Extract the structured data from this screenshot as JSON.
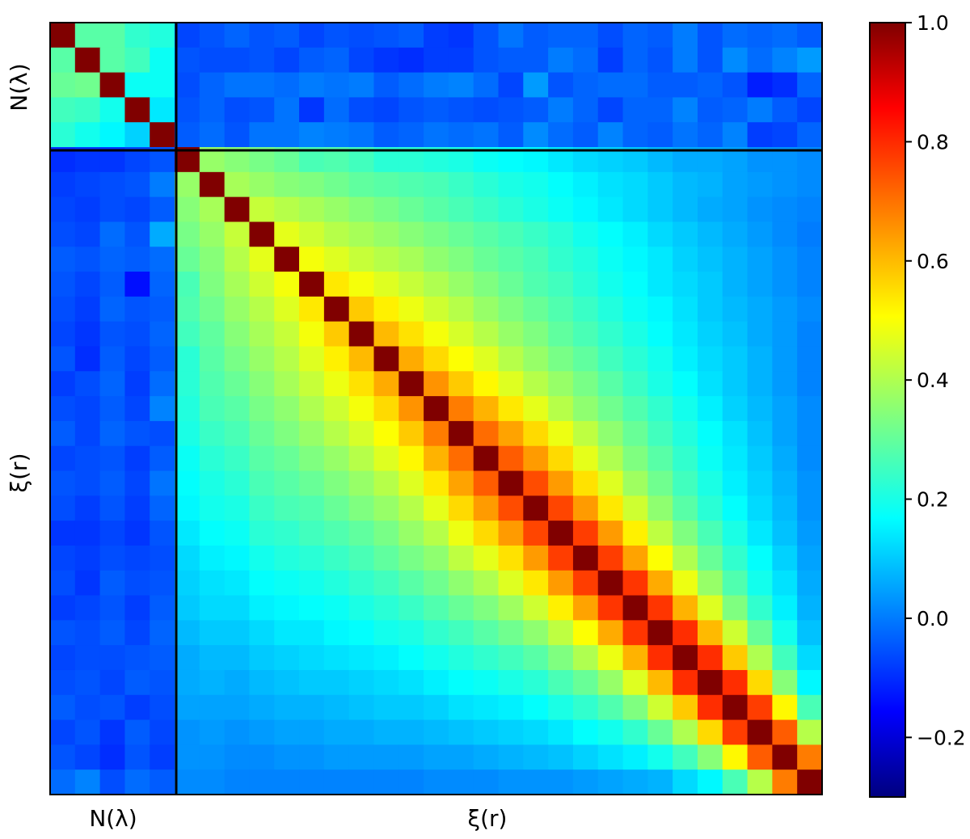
{
  "chart_data": {
    "type": "heatmap",
    "title": "",
    "xlabel_groups": [
      "N(λ)",
      "ξ(r)"
    ],
    "ylabel_groups": [
      "N(λ)",
      "ξ(r)"
    ],
    "group_sizes": [
      5,
      26
    ],
    "colormap": "jet",
    "zlim": [
      -0.3,
      1.0
    ],
    "colorbar": {
      "ticks": [
        1.0,
        0.8,
        0.6,
        0.4,
        0.2,
        0.0,
        -0.2
      ],
      "tick_labels": [
        "1.0",
        "0.8",
        "0.6",
        "0.4",
        "0.2",
        "0.0",
        "−0.2"
      ]
    },
    "grid": false,
    "blocks": {
      "n_lambda_internal_offdiag": 0.27,
      "cross_block_range": [
        -0.15,
        0.12
      ],
      "xi_near_diagonal": [
        0.72,
        0.58,
        0.5,
        0.45,
        0.4,
        0.36,
        0.33,
        0.3,
        0.27,
        0.25,
        0.22,
        0.2,
        0.18,
        0.16,
        0.14,
        0.12,
        0.1,
        0.08,
        0.06,
        0.05,
        0.04,
        0.03,
        0.02,
        0.01,
        0.0
      ]
    },
    "values": [
      [
        1.0,
        0.3,
        0.3,
        0.25,
        0.23,
        -0.05,
        -0.03,
        -0.01,
        -0.03,
        -0.02,
        -0.05,
        -0.03,
        -0.04,
        -0.03,
        -0.02,
        -0.06,
        -0.07,
        -0.03,
        0.01,
        -0.02,
        -0.01,
        -0.01,
        -0.04,
        -0.01,
        -0.02,
        0.02,
        -0.03,
        0.0,
        -0.01,
        0.0,
        -0.02
      ],
      [
        0.3,
        1.0,
        0.3,
        0.27,
        0.2,
        -0.03,
        -0.04,
        -0.04,
        -0.03,
        -0.05,
        -0.02,
        -0.01,
        -0.05,
        -0.07,
        -0.08,
        -0.06,
        -0.06,
        -0.03,
        -0.02,
        -0.02,
        0.02,
        0.0,
        -0.06,
        -0.01,
        -0.03,
        0.02,
        -0.03,
        0.04,
        0.0,
        0.03,
        0.06
      ],
      [
        0.32,
        0.33,
        1.0,
        0.2,
        0.2,
        -0.04,
        -0.01,
        0.01,
        0.01,
        0.0,
        0.02,
        0.01,
        0.02,
        -0.02,
        0.0,
        0.02,
        0.03,
        0.0,
        -0.05,
        0.06,
        -0.03,
        -0.01,
        0.0,
        0.0,
        -0.02,
        -0.02,
        -0.01,
        -0.03,
        -0.1,
        -0.08,
        -0.01
      ],
      [
        0.27,
        0.26,
        0.21,
        1.0,
        0.16,
        -0.03,
        -0.01,
        -0.04,
        -0.03,
        0.01,
        -0.07,
        0.0,
        -0.04,
        -0.05,
        -0.03,
        -0.02,
        -0.03,
        -0.04,
        -0.03,
        -0.02,
        0.02,
        -0.01,
        -0.05,
        -0.01,
        -0.01,
        0.03,
        -0.02,
        -0.01,
        0.02,
        -0.02,
        -0.05
      ],
      [
        0.24,
        0.21,
        0.18,
        0.13,
        1.0,
        -0.02,
        0.0,
        -0.03,
        0.01,
        0.01,
        0.03,
        0.02,
        0.01,
        -0.02,
        -0.01,
        0.01,
        0.0,
        0.01,
        -0.02,
        0.04,
        0.0,
        -0.02,
        0.03,
        -0.01,
        -0.02,
        0.01,
        -0.01,
        0.03,
        -0.06,
        -0.05,
        -0.01
      ],
      [
        -0.08,
        -0.07,
        -0.07,
        -0.05,
        -0.03,
        1.0,
        0.38,
        0.36,
        0.34,
        0.32,
        0.28,
        0.29,
        0.27,
        0.24,
        0.24,
        0.23,
        0.22,
        0.2,
        0.19,
        0.18,
        0.16,
        0.14,
        0.13,
        0.12,
        0.1,
        0.08,
        0.08,
        0.07,
        0.05,
        0.05,
        0.04
      ],
      [
        -0.06,
        -0.05,
        -0.04,
        -0.03,
        0.02,
        0.38,
        1.0,
        0.4,
        0.38,
        0.36,
        0.35,
        0.33,
        0.31,
        0.3,
        0.29,
        0.28,
        0.26,
        0.24,
        0.22,
        0.21,
        0.19,
        0.17,
        0.15,
        0.14,
        0.12,
        0.1,
        0.09,
        0.07,
        0.06,
        0.05,
        0.04
      ],
      [
        -0.05,
        -0.06,
        -0.04,
        -0.05,
        -0.02,
        0.36,
        0.4,
        1.0,
        0.44,
        0.42,
        0.4,
        0.38,
        0.36,
        0.34,
        0.32,
        0.3,
        0.28,
        0.26,
        0.24,
        0.22,
        0.2,
        0.18,
        0.16,
        0.14,
        0.12,
        0.1,
        0.08,
        0.07,
        0.05,
        0.04,
        0.03
      ],
      [
        -0.04,
        -0.05,
        0.0,
        -0.03,
        0.08,
        0.34,
        0.38,
        0.44,
        1.0,
        0.48,
        0.45,
        0.42,
        0.4,
        0.38,
        0.36,
        0.34,
        0.32,
        0.3,
        0.28,
        0.26,
        0.24,
        0.21,
        0.19,
        0.17,
        0.14,
        0.12,
        0.1,
        0.08,
        0.06,
        0.04,
        0.02
      ],
      [
        -0.02,
        -0.03,
        -0.01,
        -0.02,
        0.0,
        0.32,
        0.36,
        0.42,
        0.48,
        1.0,
        0.5,
        0.47,
        0.44,
        0.42,
        0.4,
        0.37,
        0.35,
        0.32,
        0.3,
        0.28,
        0.25,
        0.23,
        0.2,
        0.18,
        0.16,
        0.13,
        0.11,
        0.09,
        0.07,
        0.05,
        0.03
      ],
      [
        -0.03,
        -0.05,
        -0.02,
        -0.12,
        -0.01,
        0.28,
        0.35,
        0.4,
        0.45,
        0.5,
        1.0,
        0.54,
        0.5,
        0.47,
        0.44,
        0.41,
        0.38,
        0.35,
        0.32,
        0.29,
        0.27,
        0.24,
        0.21,
        0.19,
        0.16,
        0.14,
        0.12,
        0.09,
        0.07,
        0.05,
        0.03
      ],
      [
        -0.04,
        -0.06,
        -0.01,
        -0.03,
        -0.02,
        0.29,
        0.33,
        0.38,
        0.42,
        0.47,
        0.54,
        1.0,
        0.58,
        0.53,
        0.49,
        0.45,
        0.42,
        0.38,
        0.35,
        0.32,
        0.29,
        0.26,
        0.23,
        0.2,
        0.18,
        0.15,
        0.12,
        0.1,
        0.08,
        0.06,
        0.04
      ],
      [
        -0.05,
        -0.07,
        -0.03,
        -0.04,
        -0.01,
        0.27,
        0.31,
        0.36,
        0.4,
        0.44,
        0.5,
        0.58,
        1.0,
        0.6,
        0.55,
        0.5,
        0.46,
        0.42,
        0.38,
        0.35,
        0.31,
        0.28,
        0.25,
        0.22,
        0.19,
        0.16,
        0.13,
        0.11,
        0.08,
        0.06,
        0.03
      ],
      [
        -0.03,
        -0.08,
        -0.02,
        -0.05,
        -0.02,
        0.24,
        0.3,
        0.34,
        0.38,
        0.42,
        0.47,
        0.53,
        0.6,
        1.0,
        0.62,
        0.56,
        0.51,
        0.47,
        0.42,
        0.38,
        0.34,
        0.31,
        0.27,
        0.24,
        0.21,
        0.17,
        0.14,
        0.12,
        0.09,
        0.06,
        0.03
      ],
      [
        -0.06,
        -0.04,
        -0.01,
        -0.06,
        0.0,
        0.24,
        0.29,
        0.32,
        0.36,
        0.4,
        0.44,
        0.49,
        0.55,
        0.62,
        1.0,
        0.65,
        0.58,
        0.52,
        0.47,
        0.42,
        0.38,
        0.34,
        0.3,
        0.26,
        0.22,
        0.19,
        0.15,
        0.12,
        0.09,
        0.06,
        0.03
      ],
      [
        -0.04,
        -0.05,
        -0.02,
        -0.05,
        0.03,
        0.23,
        0.28,
        0.3,
        0.34,
        0.37,
        0.41,
        0.45,
        0.5,
        0.56,
        0.65,
        1.0,
        0.68,
        0.61,
        0.54,
        0.48,
        0.42,
        0.37,
        0.33,
        0.29,
        0.25,
        0.21,
        0.17,
        0.13,
        0.1,
        0.07,
        0.04
      ],
      [
        -0.02,
        -0.05,
        -0.01,
        -0.03,
        -0.04,
        0.22,
        0.26,
        0.28,
        0.32,
        0.35,
        0.38,
        0.42,
        0.46,
        0.51,
        0.58,
        0.68,
        1.0,
        0.7,
        0.63,
        0.56,
        0.49,
        0.43,
        0.37,
        0.32,
        0.27,
        0.23,
        0.19,
        0.15,
        0.11,
        0.07,
        0.04
      ],
      [
        -0.05,
        -0.04,
        -0.03,
        -0.06,
        -0.02,
        0.2,
        0.24,
        0.26,
        0.3,
        0.32,
        0.35,
        0.38,
        0.42,
        0.47,
        0.52,
        0.61,
        0.7,
        1.0,
        0.72,
        0.64,
        0.56,
        0.48,
        0.41,
        0.35,
        0.3,
        0.25,
        0.2,
        0.16,
        0.12,
        0.08,
        0.04
      ],
      [
        -0.03,
        -0.04,
        -0.02,
        -0.05,
        0.01,
        0.19,
        0.22,
        0.24,
        0.28,
        0.3,
        0.32,
        0.35,
        0.38,
        0.42,
        0.47,
        0.54,
        0.63,
        0.72,
        1.0,
        0.74,
        0.64,
        0.55,
        0.47,
        0.39,
        0.33,
        0.27,
        0.22,
        0.17,
        0.13,
        0.09,
        0.05
      ],
      [
        -0.04,
        -0.06,
        -0.03,
        -0.06,
        -0.01,
        0.18,
        0.21,
        0.22,
        0.26,
        0.28,
        0.29,
        0.32,
        0.35,
        0.38,
        0.42,
        0.48,
        0.56,
        0.64,
        0.74,
        1.0,
        0.75,
        0.64,
        0.54,
        0.45,
        0.37,
        0.3,
        0.24,
        0.19,
        0.14,
        0.1,
        0.05
      ],
      [
        -0.07,
        -0.07,
        -0.05,
        -0.07,
        -0.03,
        0.16,
        0.19,
        0.2,
        0.24,
        0.25,
        0.27,
        0.29,
        0.31,
        0.34,
        0.38,
        0.42,
        0.49,
        0.56,
        0.64,
        0.75,
        1.0,
        0.76,
        0.64,
        0.53,
        0.43,
        0.35,
        0.28,
        0.22,
        0.16,
        0.11,
        0.06
      ],
      [
        -0.05,
        -0.06,
        -0.04,
        -0.05,
        -0.04,
        0.14,
        0.17,
        0.18,
        0.21,
        0.23,
        0.24,
        0.26,
        0.28,
        0.31,
        0.34,
        0.37,
        0.43,
        0.48,
        0.55,
        0.64,
        0.76,
        1.0,
        0.76,
        0.63,
        0.51,
        0.41,
        0.32,
        0.25,
        0.19,
        0.13,
        0.07
      ],
      [
        -0.04,
        -0.07,
        -0.02,
        -0.04,
        -0.03,
        0.13,
        0.15,
        0.16,
        0.19,
        0.2,
        0.21,
        0.23,
        0.25,
        0.27,
        0.3,
        0.33,
        0.37,
        0.41,
        0.47,
        0.54,
        0.64,
        0.76,
        1.0,
        0.77,
        0.62,
        0.49,
        0.38,
        0.29,
        0.21,
        0.15,
        0.08
      ],
      [
        -0.06,
        -0.05,
        -0.03,
        -0.06,
        -0.02,
        0.12,
        0.14,
        0.14,
        0.17,
        0.18,
        0.19,
        0.2,
        0.22,
        0.24,
        0.26,
        0.29,
        0.32,
        0.35,
        0.39,
        0.45,
        0.53,
        0.63,
        0.77,
        1.0,
        0.77,
        0.61,
        0.47,
        0.35,
        0.25,
        0.17,
        0.09
      ],
      [
        -0.03,
        -0.04,
        -0.02,
        -0.05,
        -0.01,
        0.1,
        0.12,
        0.12,
        0.14,
        0.16,
        0.16,
        0.18,
        0.19,
        0.21,
        0.22,
        0.25,
        0.27,
        0.3,
        0.33,
        0.37,
        0.43,
        0.51,
        0.62,
        0.77,
        1.0,
        0.78,
        0.6,
        0.45,
        0.32,
        0.21,
        0.11
      ],
      [
        -0.05,
        -0.04,
        -0.04,
        -0.03,
        -0.02,
        0.08,
        0.1,
        0.1,
        0.12,
        0.13,
        0.14,
        0.15,
        0.16,
        0.17,
        0.19,
        0.21,
        0.23,
        0.25,
        0.27,
        0.3,
        0.35,
        0.41,
        0.49,
        0.61,
        0.78,
        1.0,
        0.78,
        0.58,
        0.41,
        0.27,
        0.14
      ],
      [
        -0.04,
        -0.03,
        -0.05,
        -0.02,
        -0.03,
        0.08,
        0.09,
        0.08,
        0.1,
        0.11,
        0.12,
        0.12,
        0.13,
        0.14,
        0.15,
        0.17,
        0.19,
        0.2,
        0.22,
        0.24,
        0.28,
        0.32,
        0.38,
        0.47,
        0.6,
        0.78,
        1.0,
        0.78,
        0.56,
        0.36,
        0.18
      ],
      [
        -0.02,
        -0.04,
        -0.03,
        -0.06,
        -0.04,
        0.07,
        0.07,
        0.07,
        0.08,
        0.09,
        0.09,
        0.1,
        0.11,
        0.12,
        0.12,
        0.13,
        0.15,
        0.16,
        0.17,
        0.19,
        0.22,
        0.25,
        0.29,
        0.35,
        0.45,
        0.58,
        0.78,
        1.0,
        0.76,
        0.52,
        0.28
      ],
      [
        -0.05,
        -0.03,
        -0.07,
        -0.02,
        -0.05,
        0.05,
        0.06,
        0.05,
        0.06,
        0.07,
        0.07,
        0.08,
        0.08,
        0.09,
        0.09,
        0.1,
        0.11,
        0.12,
        0.13,
        0.14,
        0.16,
        0.19,
        0.21,
        0.25,
        0.32,
        0.41,
        0.56,
        0.76,
        1.0,
        0.72,
        0.42
      ],
      [
        -0.03,
        -0.05,
        -0.08,
        -0.03,
        -0.06,
        0.05,
        0.05,
        0.04,
        0.04,
        0.05,
        0.05,
        0.06,
        0.06,
        0.06,
        0.06,
        0.07,
        0.07,
        0.08,
        0.09,
        0.1,
        0.11,
        0.13,
        0.15,
        0.17,
        0.21,
        0.27,
        0.36,
        0.52,
        0.72,
        1.0,
        0.68
      ],
      [
        0.0,
        0.03,
        -0.04,
        0.0,
        -0.02,
        0.04,
        0.04,
        0.03,
        0.03,
        0.03,
        0.03,
        0.03,
        0.03,
        0.03,
        0.03,
        0.04,
        0.04,
        0.04,
        0.05,
        0.05,
        0.05,
        0.06,
        0.07,
        0.08,
        0.09,
        0.14,
        0.18,
        0.28,
        0.42,
        0.68,
        1.0
      ]
    ]
  }
}
